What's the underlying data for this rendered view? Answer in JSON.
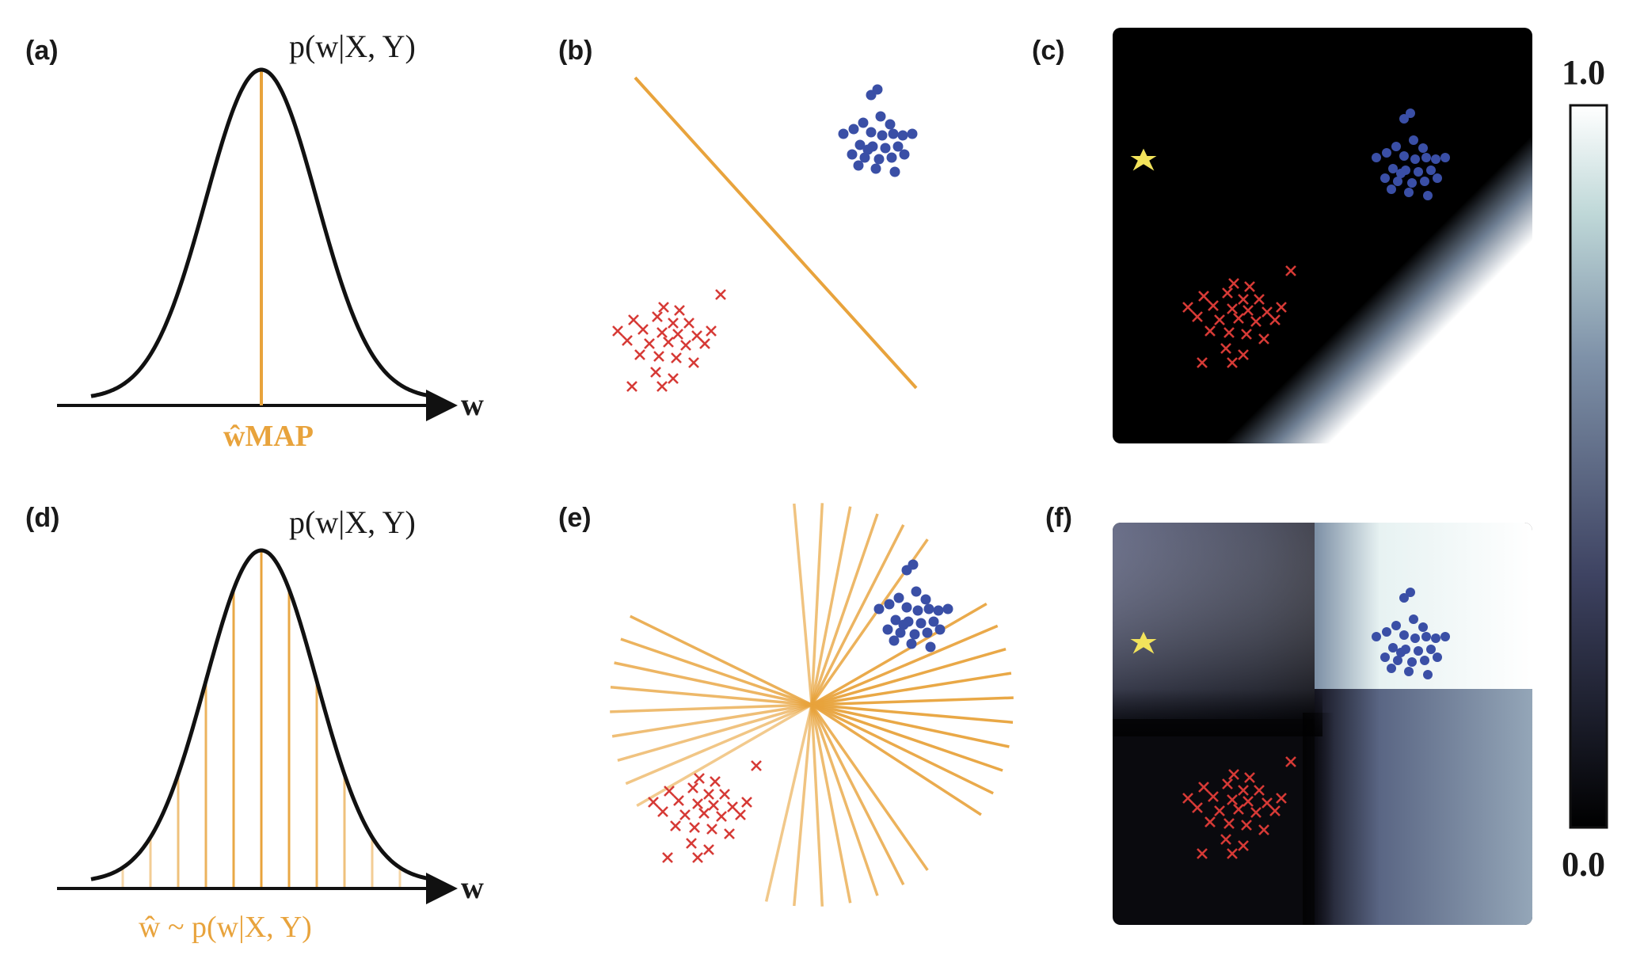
{
  "panels": {
    "a": {
      "label": "(a)",
      "title": "p(w|X, Y)",
      "axis": "w",
      "estimate": "ŵMAP"
    },
    "b": {
      "label": "(b)"
    },
    "c": {
      "label": "(c)"
    },
    "d": {
      "label": "(d)",
      "title": "p(w|X, Y)",
      "axis": "w",
      "estimate": "ŵ ~ p(w|X, Y)"
    },
    "e": {
      "label": "(e)"
    },
    "f": {
      "label": "(f)"
    }
  },
  "colorbar": {
    "max_label": "1.0",
    "min_label": "0.0"
  },
  "colors": {
    "curve": "#111111",
    "orange": "#E8A33C",
    "blue_class": "#3A4FA6",
    "red_class": "#D63A36",
    "star": "#F2E35B",
    "heat_low": "#000000",
    "heat_high": "#FFFFFF"
  }
}
